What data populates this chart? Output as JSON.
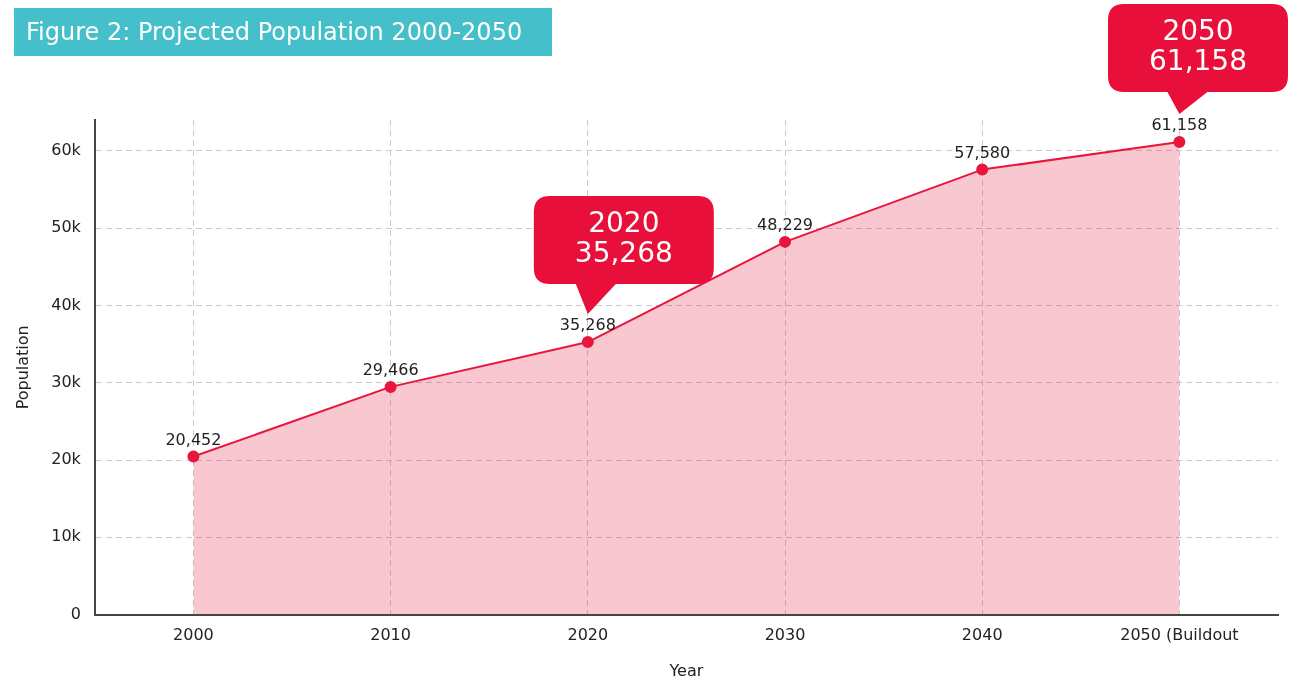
{
  "chart_data": {
    "type": "area",
    "title": "Figure 2: Projected Population 2000-2050",
    "xlabel": "Year",
    "ylabel": "Population",
    "categories": [
      "2000",
      "2010",
      "2020",
      "2030",
      "2040",
      "2050 (Buildout"
    ],
    "series": [
      {
        "color": "#e8163c",
        "values": [
          20452,
          29466,
          35268,
          48229,
          57580,
          61158
        ],
        "value_labels": [
          "20,452",
          "29,466",
          "35,268",
          "48,229",
          "57,580",
          "61,158"
        ]
      }
    ],
    "ylim": [
      0,
      64000
    ],
    "yticks": [
      0,
      {
        "value": 10000,
        "label": "10k"
      },
      {
        "value": 20000,
        "label": "20k"
      },
      {
        "value": 30000,
        "label": "30k"
      },
      {
        "value": 40000,
        "label": "40k"
      },
      {
        "value": 50000,
        "label": "50k"
      },
      {
        "value": 60000,
        "label": "60k"
      }
    ],
    "grid": true,
    "marker": "circle",
    "legend": false,
    "annotations": [
      {
        "text": "2020\n35,268",
        "x": "2020",
        "y": 35268
      },
      {
        "text": "2050\n61,158",
        "x": "2050 (Buildout",
        "y": 61158
      }
    ]
  }
}
